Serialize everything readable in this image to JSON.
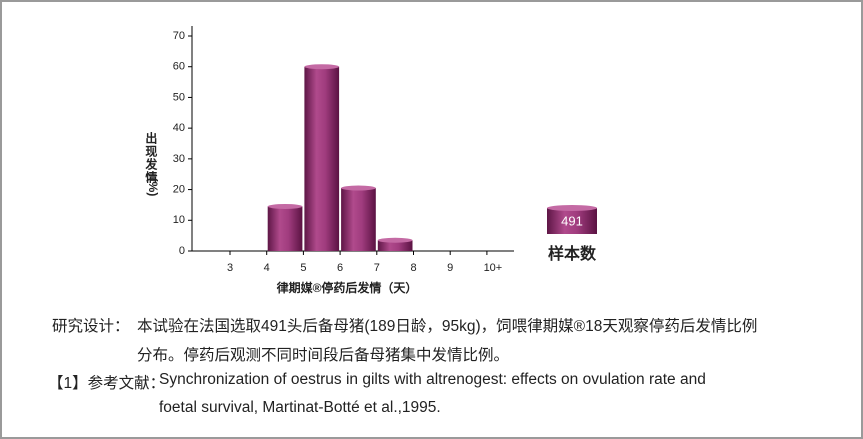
{
  "chart_data": {
    "type": "bar",
    "y_label": "出现发情",
    "y_unit": "(%)",
    "x_label": "律期媒®停药后发情（天）",
    "categories": [
      "3",
      "4",
      "5",
      "6",
      "7",
      "8",
      "9",
      "10+"
    ],
    "values": [
      0,
      14.5,
      60,
      20.5,
      3.5,
      0,
      0,
      0
    ],
    "color": "#8e2f6e",
    "ylim": [
      0,
      70
    ],
    "yticks": [
      0,
      10,
      20,
      30,
      40,
      50,
      60,
      70
    ],
    "sample_size": 491,
    "sample_label": "样本数"
  },
  "caption": {
    "study_design": {
      "label": "研究设计：",
      "lines": [
        "本试验在法国选取491头后备母猪(189日龄，95kg)，饲喂律期媒®18天观察停药后发情比例",
        "分布。停药后观测不同时间段后备母猪集中发情比例。"
      ]
    },
    "reference": {
      "label": "【1】参考文献：",
      "lines": [
        "Synchronization of oestrus in gilts with altrenogest: effects on ovulation rate and",
        "foetal  survival, Martinat-Botté et al.,1995."
      ]
    }
  }
}
